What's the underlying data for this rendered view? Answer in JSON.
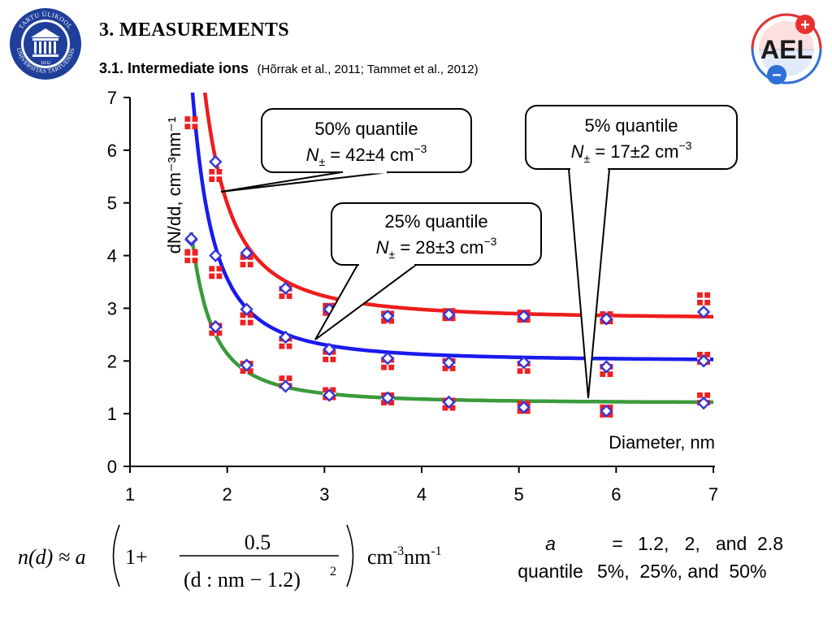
{
  "header": {
    "section_title": "3. MEASUREMENTS",
    "subsection_title": "3.1. Intermediate ions",
    "references": "(Hõrrak et al., 2011; Tammet et al., 2012)"
  },
  "logos": {
    "left_text": "UNIVERSITAS TARTUENSIS",
    "left_top_text": "TARTU ÜLIKOOL",
    "left_year": "1632",
    "right_text": "AEL",
    "plus_symbol": "+",
    "minus_symbol": "−",
    "colors": {
      "university_blue": "#1f3f9a",
      "ael_red": "#e8312f",
      "ael_blue": "#2f6fd6"
    }
  },
  "chart_data": {
    "type": "scatter",
    "xlabel": "Diameter, nm",
    "ylabel": "dN/dd, cm⁻³nm⁻¹",
    "xlim": [
      1,
      7
    ],
    "ylim": [
      0,
      7
    ],
    "x_ticks": [
      1,
      2,
      3,
      4,
      5,
      6,
      7
    ],
    "y_ticks": [
      0,
      1,
      2,
      3,
      4,
      5,
      6,
      7
    ],
    "grid": false,
    "fit_formula": "n(d) ≈ a(1 + 0.5/(d:nm − 1.2)²) cm⁻³nm⁻¹",
    "series": [
      {
        "a": 1.2,
        "color": "#3a9a3a",
        "fit_xmin": 1.63,
        "x": [
          1.63,
          1.88,
          2.2,
          2.6,
          3.05,
          3.65,
          4.28,
          5.05,
          5.9,
          6.9
        ],
        "squares": [
          4.0,
          2.6,
          1.88,
          1.6,
          1.38,
          1.28,
          1.18,
          1.12,
          1.05,
          1.28
        ],
        "diamonds": [
          4.3,
          2.65,
          1.92,
          1.52,
          1.35,
          1.3,
          1.22,
          1.12,
          1.05,
          1.2
        ]
      },
      {
        "a": 2,
        "color": "#1a1aee",
        "fit_xmin": 1.64,
        "x": [
          1.63,
          1.88,
          2.2,
          2.6,
          3.05,
          3.65,
          4.28,
          5.05,
          5.9,
          6.9
        ],
        "squares": [
          3.98,
          3.68,
          2.8,
          2.35,
          2.1,
          1.95,
          1.93,
          1.88,
          1.82,
          2.05
        ],
        "diamonds": [
          4.32,
          4.0,
          2.98,
          2.45,
          2.22,
          2.05,
          1.97,
          1.97,
          1.89,
          2.0
        ]
      },
      {
        "a": 2.8,
        "color": "#ee1c1c",
        "fit_xmin": 1.66,
        "x": [
          1.63,
          1.88,
          2.2,
          2.6,
          3.05,
          3.65,
          4.28,
          5.05,
          5.9,
          6.9
        ],
        "squares": [
          6.52,
          5.52,
          3.9,
          3.3,
          2.98,
          2.83,
          2.88,
          2.85,
          2.82,
          3.18
        ],
        "diamonds": [
          null,
          5.78,
          4.05,
          3.38,
          2.98,
          2.85,
          2.88,
          2.85,
          2.8,
          2.93
        ]
      }
    ],
    "marker_colors": {
      "square_fill": "#ee2020",
      "square_cross": "#ffffff",
      "diamond_stroke": "#3535d8",
      "diamond_fill": "#ffffff"
    },
    "callouts": [
      {
        "label": "50% quantile",
        "sub_n": "N",
        "sub_pm": "±",
        "value": "= 42±4 cm",
        "exp": "−3"
      },
      {
        "label": "25% quantile",
        "sub_n": "N",
        "sub_pm": "±",
        "value": "= 28±3 cm",
        "exp": "−3"
      },
      {
        "label": "5% quantile",
        "sub_n": "N",
        "sub_pm": "±",
        "value": "= 17±2 cm",
        "exp": "−3"
      }
    ]
  },
  "formula": {
    "lhs": "n(d) ≈ a",
    "one_plus": "1+",
    "numerator": "0.5",
    "denominator": "(d : nm − 1.2)",
    "denominator_exp": "2",
    "units": "cm",
    "units_exp1": "-3",
    "units_nm": "nm",
    "units_exp2": "-1"
  },
  "legend_note": {
    "a_key": "a",
    "equals": "=",
    "a_values": "1.2,   2,   and  2.8",
    "quantile_key": "quantile",
    "quantile_values": "5%,  25%, and  50%"
  }
}
